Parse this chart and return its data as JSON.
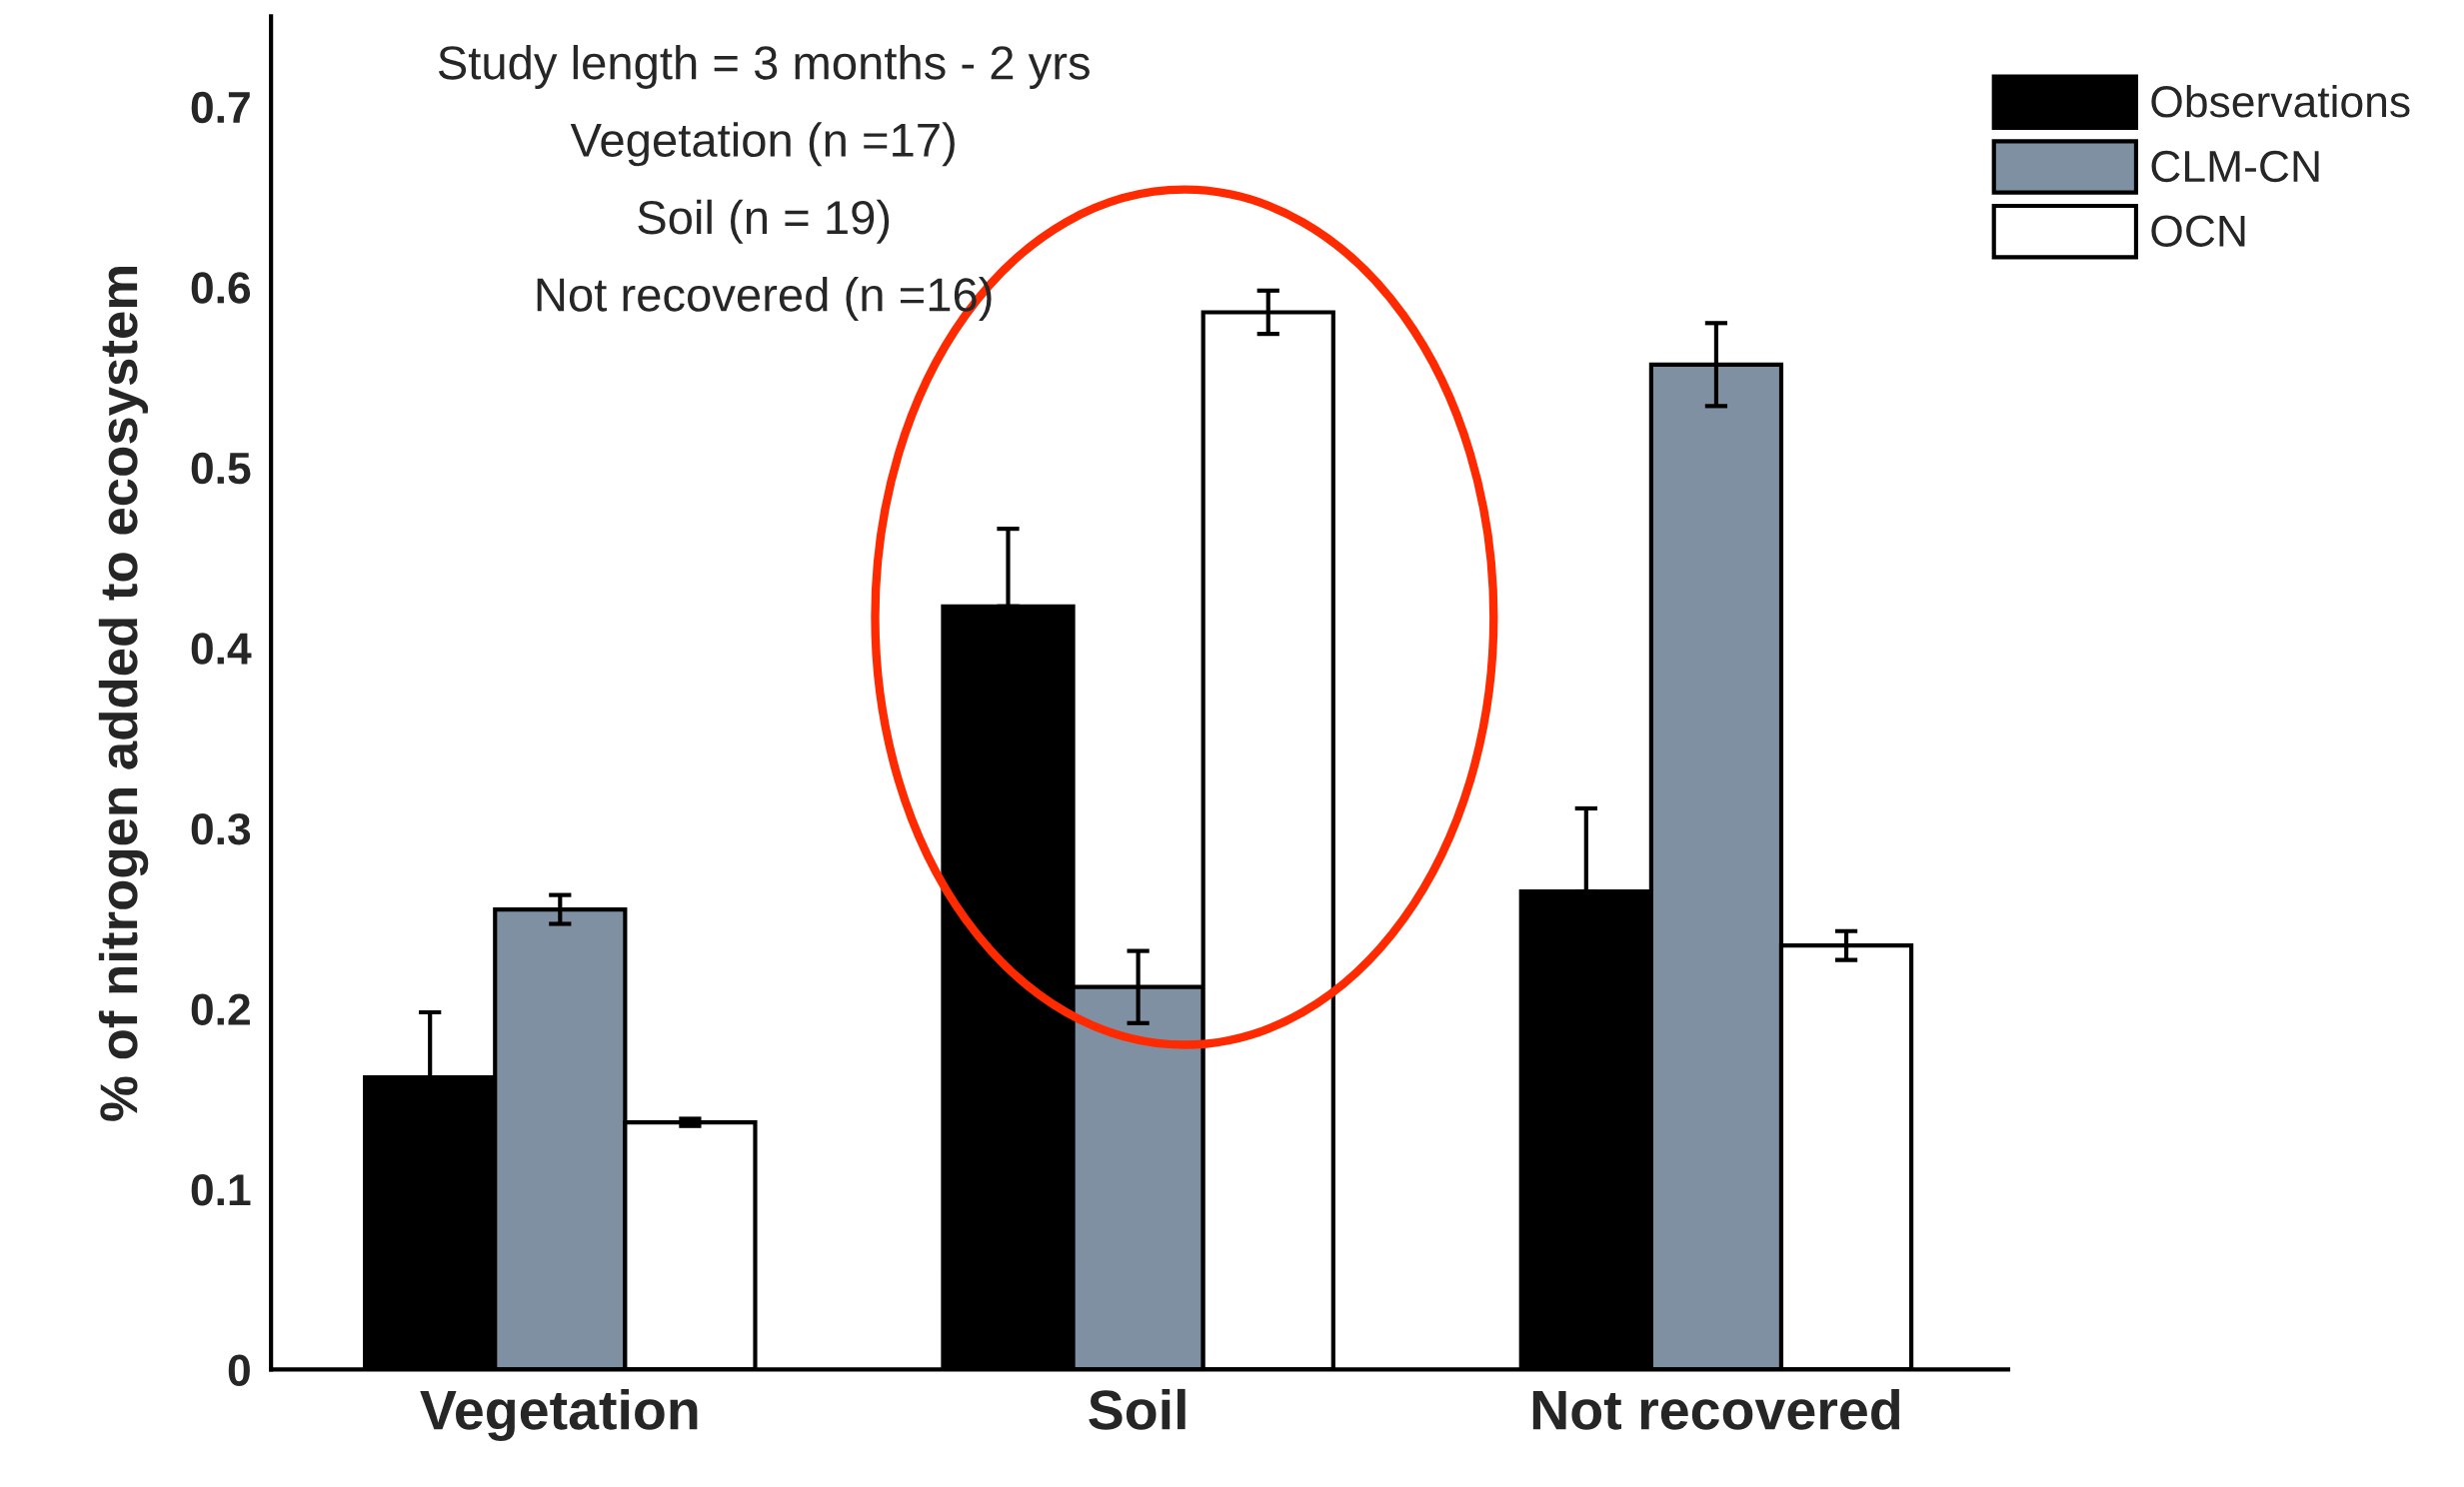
{
  "chart_data": {
    "type": "bar",
    "ylabel": "% of nitrogen added to ecosystem",
    "categories": [
      "Vegetation",
      "Soil",
      "Not recovered"
    ],
    "series": [
      {
        "name": "Observations",
        "color": "#000000",
        "values": [
          0.162,
          0.423,
          0.265
        ],
        "errors": [
          [
            0.162,
            0.198
          ],
          [
            0.423,
            0.466
          ],
          [
            0.265,
            0.311
          ]
        ]
      },
      {
        "name": "CLM-CN",
        "color": "#8090a3",
        "values": [
          0.255,
          0.212,
          0.557
        ],
        "errors": [
          0.008,
          0.02,
          0.023
        ]
      },
      {
        "name": "OCN",
        "color": "#ffffff",
        "values": [
          0.137,
          0.586,
          0.235
        ],
        "errors": [
          0.002,
          0.012,
          0.008
        ]
      }
    ],
    "ylim": [
      0,
      0.75
    ],
    "yticks": [
      0,
      0.1,
      0.2,
      0.3,
      0.4,
      0.5,
      0.6,
      0.7
    ],
    "annotations": [
      "Study length = 3 months - 2 yrs",
      "Vegetation (n =17)",
      "Soil (n = 19)",
      "Not recovered (n =16)"
    ],
    "legend": "top right",
    "grid": false
  }
}
